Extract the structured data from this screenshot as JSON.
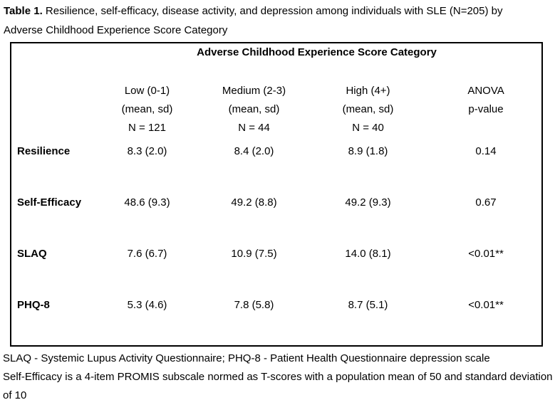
{
  "title": {
    "label": "Table 1.",
    "line1": "Resilience, self-efficacy, disease activity, and depression among individuals with SLE (N=205) by",
    "line2": "Adverse Childhood Experience Score Category"
  },
  "table": {
    "span_header": "Adverse Childhood Experience Score Category",
    "columns": [
      {
        "line1": "Low (0-1)",
        "line2": "(mean, sd)",
        "line3": "N = 121"
      },
      {
        "line1": "Medium (2-3)",
        "line2": "(mean, sd)",
        "line3": "N = 44"
      },
      {
        "line1": "High (4+)",
        "line2": "(mean, sd)",
        "line3": "N = 40"
      },
      {
        "line1": "ANOVA",
        "line2": "p-value",
        "line3": ""
      }
    ],
    "rows": [
      {
        "label": "Resilience",
        "low": "8.3 (2.0)",
        "medium": "8.4 (2.0)",
        "high": "8.9 (1.8)",
        "p": "0.14"
      },
      {
        "label": "Self-Efficacy",
        "low": "48.6 (9.3)",
        "medium": "49.2 (8.8)",
        "high": "49.2 (9.3)",
        "p": "0.67"
      },
      {
        "label": "SLAQ",
        "low": "7.6 (6.7)",
        "medium": "10.9 (7.5)",
        "high": "14.0 (8.1)",
        "p": "<0.01**"
      },
      {
        "label": "PHQ-8",
        "low": "5.3 (4.6)",
        "medium": "7.8 (5.8)",
        "high": "8.7 (5.1)",
        "p": "<0.01**"
      }
    ]
  },
  "footnotes": [
    "SLAQ - Systemic Lupus Activity Questionnaire; PHQ-8 - Patient Health Questionnaire depression scale",
    "Self-Efficacy is a 4-item PROMIS subscale normed as T-scores with a population mean of 50 and standard deviation of 10"
  ]
}
